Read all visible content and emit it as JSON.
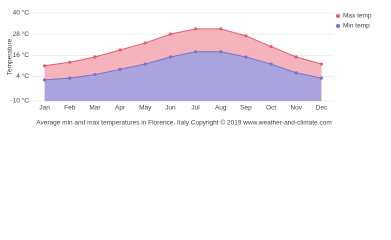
{
  "chart_data": {
    "type": "line",
    "y_label": "Temperature",
    "caption": "Average min and max temperatures in Florence, Italy   Copyright © 2019 www.weather-and-climate.com",
    "categories": [
      "Jan",
      "Feb",
      "Mar",
      "Apr",
      "May",
      "Jun",
      "Jul",
      "Aug",
      "Sep",
      "Oct",
      "Nov",
      "Dec"
    ],
    "series": [
      {
        "name": "Max temp",
        "color": "#e0606e",
        "fill": "#f5b3bb",
        "values": [
          10,
          12,
          15,
          19,
          23,
          28,
          31,
          31,
          27,
          21,
          15,
          11
        ]
      },
      {
        "name": "Min temp",
        "color": "#7a72c8",
        "fill": "#aaa4de",
        "values": [
          2,
          3,
          5,
          8,
          11,
          15,
          18,
          18,
          15,
          11,
          6,
          3
        ]
      }
    ],
    "ylim": [
      -10,
      40
    ],
    "yticks": [
      {
        "value": 40,
        "label": "40 °C"
      },
      {
        "value": 28,
        "label": "28 °C"
      },
      {
        "value": 16,
        "label": "16 °C"
      },
      {
        "value": 4,
        "label": "4 °C"
      },
      {
        "value": -10,
        "label": "-10 °C"
      }
    ],
    "grid": true,
    "legend": "top-right"
  }
}
